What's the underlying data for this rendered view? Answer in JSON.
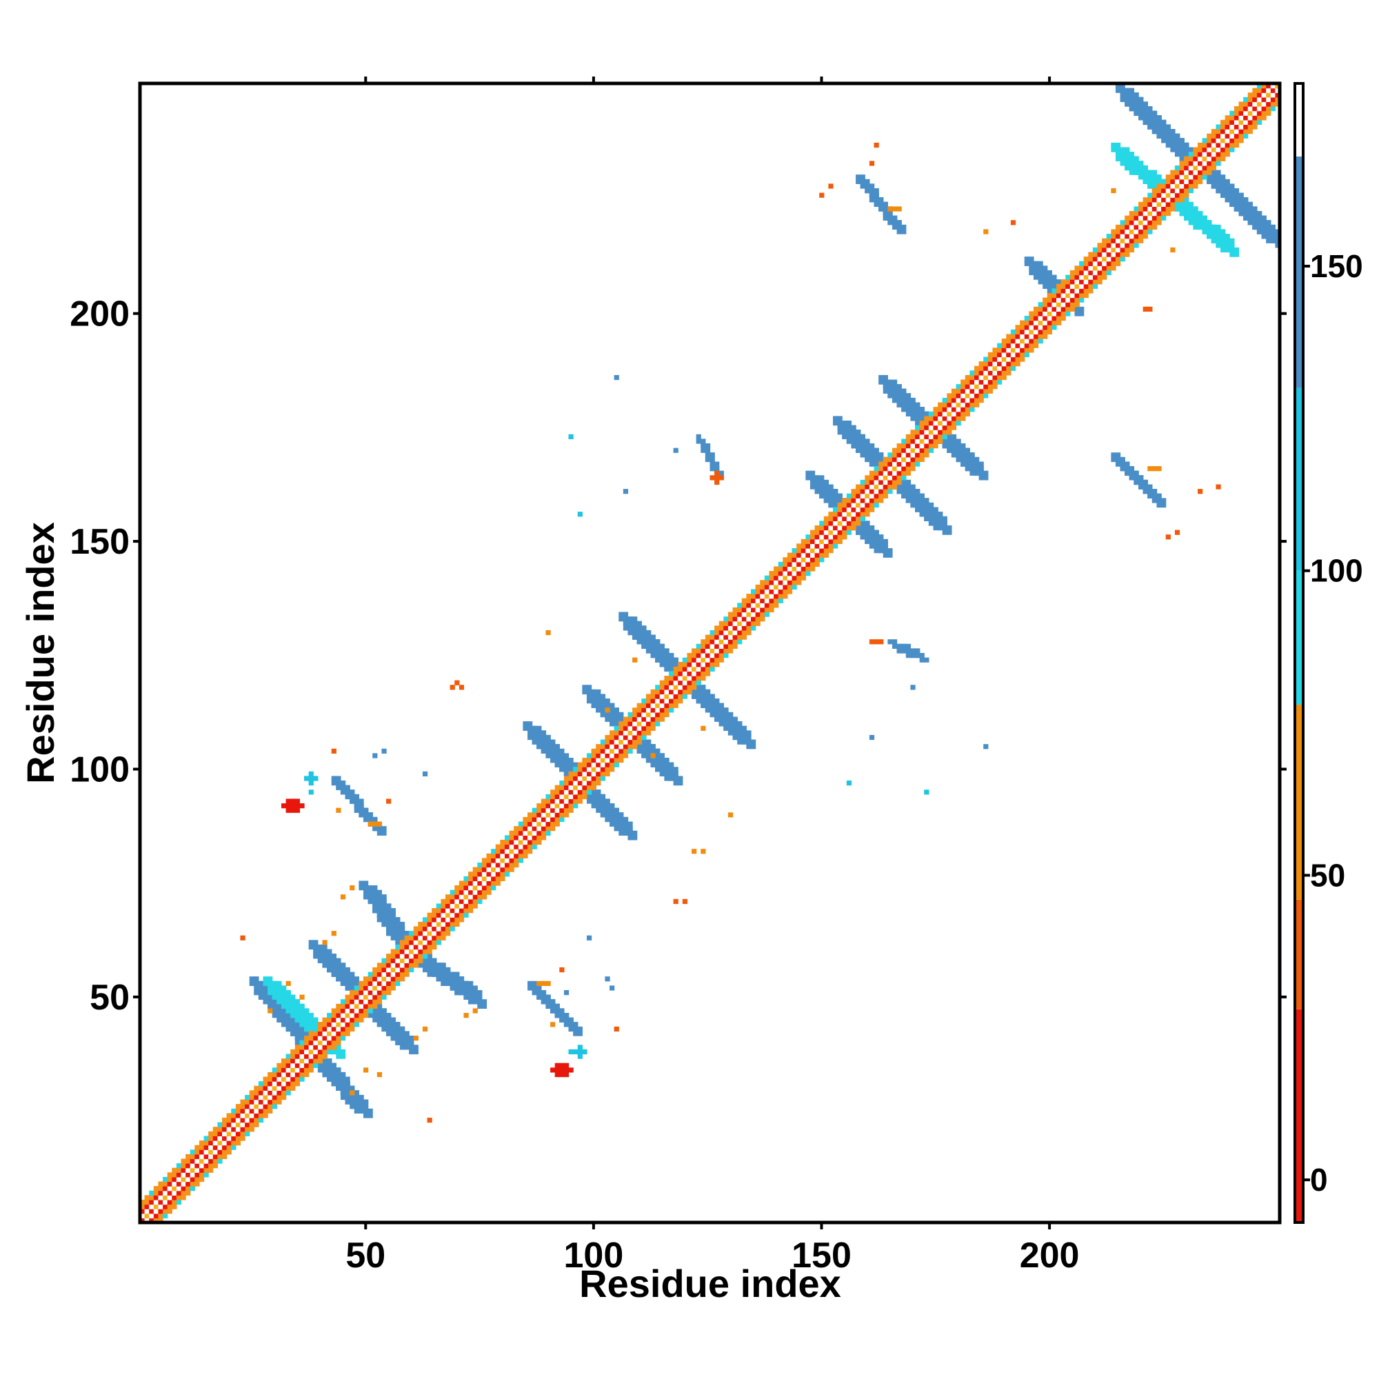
{
  "chart_data": {
    "type": "heatmap",
    "title": "",
    "xlabel": "Residue index",
    "ylabel": "Residue index",
    "xlim": [
      1,
      250
    ],
    "ylim": [
      1,
      250
    ],
    "x_ticks": [
      50,
      100,
      150,
      200
    ],
    "y_ticks": [
      50,
      100,
      150,
      200
    ],
    "colorbar": {
      "range": [
        -7,
        180
      ],
      "ticks": [
        0,
        50,
        100,
        150
      ],
      "stops": [
        {
          "from": -7,
          "to": 28,
          "color": "#e8170c"
        },
        {
          "from": 28,
          "to": 46,
          "color": "#f05a0a"
        },
        {
          "from": 46,
          "to": 78,
          "color": "#f28c0c"
        },
        {
          "from": 78,
          "to": 100,
          "color": "#26d7e6"
        },
        {
          "from": 100,
          "to": 130,
          "color": "#1ec4e2"
        },
        {
          "from": 130,
          "to": 168,
          "color": "#4a8ec8"
        },
        {
          "from": 168,
          "to": 180,
          "color": "#ffffff"
        }
      ]
    },
    "diagonal": {
      "from": 1,
      "to": 250,
      "band_colors": [
        "#e8170c",
        "#f5921b",
        "#26d7e6"
      ]
    },
    "features": [
      {
        "type": "line",
        "from": [
          28,
          51
        ],
        "to": [
          48,
          27
        ],
        "width": 2.3,
        "color": "#4a8ec8"
      },
      {
        "type": "line",
        "from": [
          31,
          51
        ],
        "to": [
          42,
          40
        ],
        "width": 2.2,
        "color": "#26d7e6"
      },
      {
        "type": "line",
        "from": [
          41,
          59
        ],
        "to": [
          58,
          41
        ],
        "width": 2.4,
        "color": "#4a8ec8"
      },
      {
        "type": "line",
        "from": [
          52,
          72
        ],
        "to": [
          57,
          64
        ],
        "width": 2.3,
        "color": "#4a8ec8"
      },
      {
        "type": "line",
        "from": [
          64,
          57
        ],
        "to": [
          73,
          51
        ],
        "width": 2.2,
        "color": "#4a8ec8"
      },
      {
        "type": "line",
        "from": [
          88,
          107
        ],
        "to": [
          106,
          88
        ],
        "width": 2.3,
        "color": "#4a8ec8"
      },
      {
        "type": "line",
        "from": [
          101,
          115
        ],
        "to": [
          116,
          100
        ],
        "width": 2.3,
        "color": "#4a8ec8"
      },
      {
        "type": "line",
        "from": [
          109,
          131
        ],
        "to": [
          132,
          108
        ],
        "width": 2.3,
        "color": "#4a8ec8"
      },
      {
        "type": "line",
        "from": [
          150,
          162
        ],
        "to": [
          162,
          150
        ],
        "width": 2.2,
        "color": "#4a8ec8"
      },
      {
        "type": "line",
        "from": [
          156,
          174
        ],
        "to": [
          175,
          155
        ],
        "width": 2.3,
        "color": "#4a8ec8"
      },
      {
        "type": "line",
        "from": [
          166,
          183
        ],
        "to": [
          183,
          167
        ],
        "width": 2.3,
        "color": "#4a8ec8"
      },
      {
        "type": "line",
        "from": [
          197,
          210
        ],
        "to": [
          205,
          202
        ],
        "width": 2.0,
        "color": "#4a8ec8"
      },
      {
        "type": "line",
        "from": [
          218,
          247
        ],
        "to": [
          248,
          218
        ],
        "width": 2.4,
        "color": "#4a8ec8"
      },
      {
        "type": "line",
        "from": [
          217,
          234
        ],
        "to": [
          238,
          216
        ],
        "width": 2.2,
        "color": "#26d7e6"
      },
      {
        "type": "line",
        "from": [
          45,
          96
        ],
        "to": [
          52,
          88
        ],
        "width": 1.5,
        "color": "#4a8ec8"
      },
      {
        "type": "line",
        "from": [
          88,
          51
        ],
        "to": [
          95,
          44
        ],
        "width": 1.5,
        "color": "#4a8ec8"
      },
      {
        "type": "line",
        "from": [
          160,
          228
        ],
        "to": [
          166,
          220
        ],
        "width": 1.4,
        "color": "#4a8ec8"
      },
      {
        "type": "line",
        "from": [
          216,
          167
        ],
        "to": [
          223,
          160
        ],
        "width": 1.4,
        "color": "#4a8ec8"
      },
      {
        "type": "line",
        "from": [
          124,
          172
        ],
        "to": [
          127,
          165
        ],
        "width": 0.8,
        "color": "#4a8ec8"
      },
      {
        "type": "line",
        "from": [
          166,
          127
        ],
        "to": [
          172,
          125
        ],
        "width": 0.8,
        "color": "#4a8ec8"
      },
      {
        "type": "blob",
        "center": [
          34,
          92
        ],
        "r": [
          2.2,
          1.7
        ],
        "color": "#e8170c"
      },
      {
        "type": "blob",
        "center": [
          93,
          34
        ],
        "r": [
          2.2,
          1.7
        ],
        "color": "#e8170c"
      },
      {
        "type": "blob",
        "center": [
          38,
          98
        ],
        "r": [
          1.3,
          1.0
        ],
        "color": "#1ec4e2"
      },
      {
        "type": "blob",
        "center": [
          97,
          38
        ],
        "r": [
          1.3,
          1.0
        ],
        "color": "#1ec4e2"
      },
      {
        "type": "blob",
        "center": [
          127,
          164
        ],
        "r": [
          1.0,
          1.0
        ],
        "color": "#f05a0a"
      },
      {
        "type": "blob",
        "center": [
          162,
          128
        ],
        "r": [
          1.0,
          0.8
        ],
        "color": "#f05a0a"
      },
      {
        "type": "blob",
        "center": [
          52,
          88
        ],
        "r": [
          1.0,
          0.8
        ],
        "color": "#f28c0c"
      },
      {
        "type": "blob",
        "center": [
          89,
          53
        ],
        "r": [
          1.0,
          0.8
        ],
        "color": "#f28c0c"
      },
      {
        "type": "blob",
        "center": [
          166,
          223
        ],
        "r": [
          1.0,
          0.8
        ],
        "color": "#f28c0c"
      },
      {
        "type": "blob",
        "center": [
          223,
          166
        ],
        "r": [
          1.0,
          0.8
        ],
        "color": "#f28c0c"
      },
      {
        "type": "dots",
        "color": "#f05a0a",
        "points": [
          [
            43,
            104
          ],
          [
            105,
            43
          ],
          [
            70,
            119
          ],
          [
            71,
            118
          ],
          [
            55,
            93
          ],
          [
            93,
            56
          ],
          [
            118,
            71
          ],
          [
            69,
            118
          ],
          [
            23,
            63
          ],
          [
            64,
            23
          ],
          [
            150,
            226
          ],
          [
            152,
            228
          ],
          [
            226,
            151
          ],
          [
            228,
            152
          ],
          [
            120,
            71
          ],
          [
            162,
            237
          ],
          [
            237,
            162
          ],
          [
            192,
            220
          ],
          [
            221,
            201
          ],
          [
            222,
            201
          ],
          [
            233,
            161
          ],
          [
            161,
            233
          ]
        ]
      },
      {
        "type": "dots",
        "color": "#f28c0c",
        "points": [
          [
            45,
            72
          ],
          [
            47,
            74
          ],
          [
            72,
            46
          ],
          [
            74,
            47
          ],
          [
            61,
            41
          ],
          [
            63,
            43
          ],
          [
            41,
            62
          ],
          [
            43,
            64
          ],
          [
            53,
            33
          ],
          [
            33,
            53
          ],
          [
            50,
            34
          ],
          [
            36,
            50
          ],
          [
            29,
            47
          ],
          [
            47,
            29
          ],
          [
            91,
            44
          ],
          [
            44,
            91
          ],
          [
            103,
            113
          ],
          [
            113,
            103
          ],
          [
            109,
            124
          ],
          [
            124,
            109
          ],
          [
            90,
            130
          ],
          [
            130,
            90
          ],
          [
            77,
            80
          ],
          [
            80,
            77
          ],
          [
            122,
            82
          ],
          [
            124,
            82
          ],
          [
            186,
            218
          ],
          [
            214,
            227
          ],
          [
            227,
            214
          ]
        ]
      },
      {
        "type": "dots",
        "color": "#4a8ec8",
        "points": [
          [
            52,
            103
          ],
          [
            54,
            104
          ],
          [
            104,
            52
          ],
          [
            103,
            54
          ],
          [
            94,
            51
          ],
          [
            99,
            63
          ],
          [
            63,
            99
          ],
          [
            105,
            186
          ],
          [
            186,
            105
          ],
          [
            161,
            107
          ],
          [
            107,
            161
          ],
          [
            118,
            170
          ],
          [
            170,
            118
          ],
          [
            56,
            45
          ],
          [
            45,
            56
          ]
        ]
      },
      {
        "type": "dots",
        "color": "#1ec4e2",
        "points": [
          [
            97,
            156
          ],
          [
            156,
            97
          ],
          [
            95,
            173
          ],
          [
            173,
            95
          ],
          [
            38,
            95
          ],
          [
            95,
            38
          ]
        ]
      }
    ]
  }
}
